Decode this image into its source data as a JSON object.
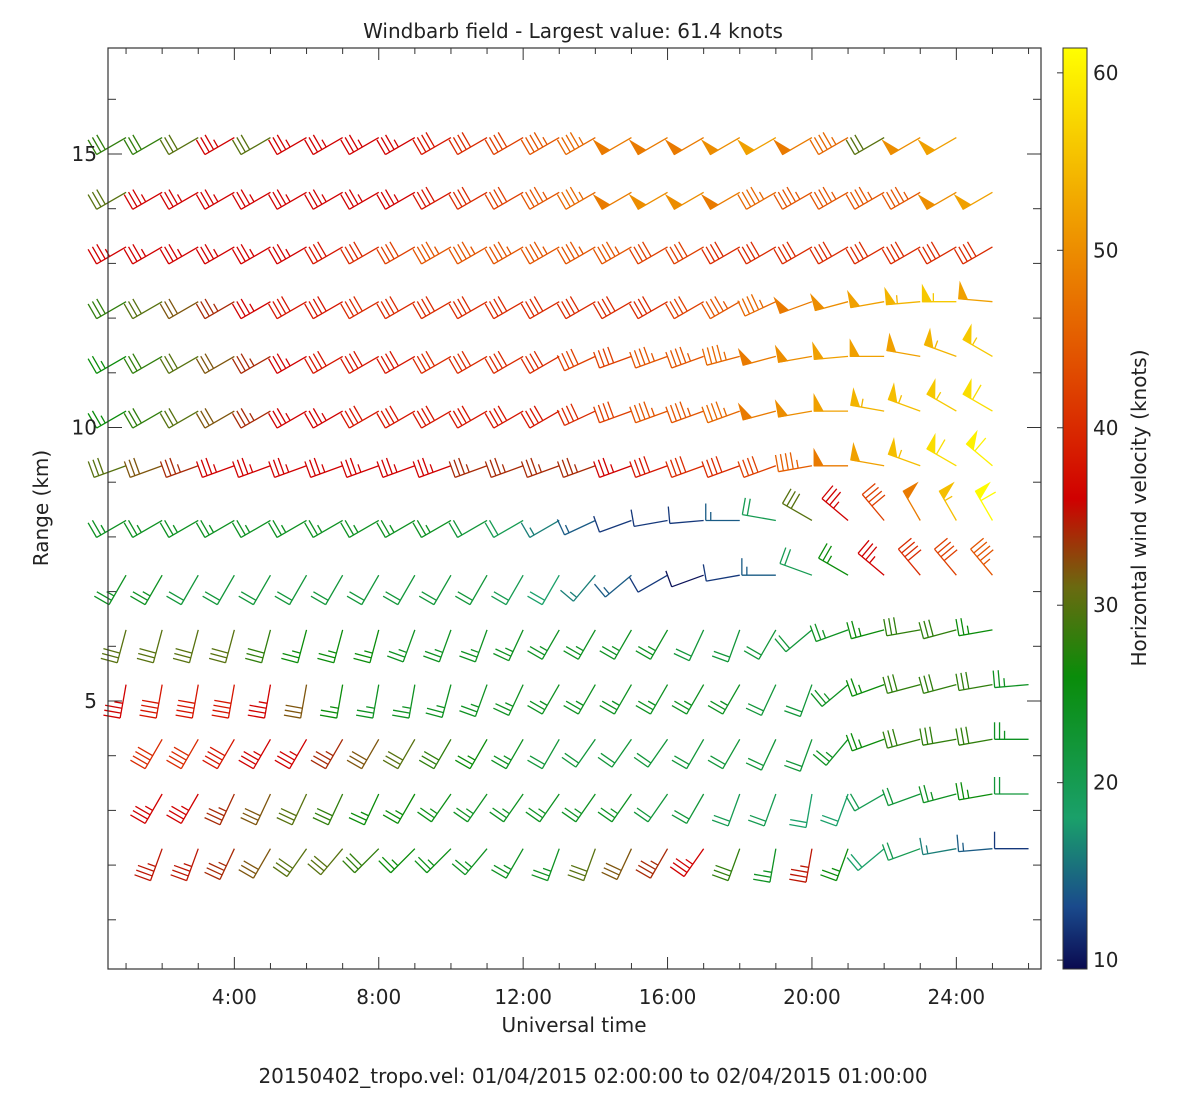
{
  "chart_data": {
    "type": "windbarb",
    "title": "Windbarb field - Largest value: 61.4 knots",
    "xlabel": "Universal time",
    "ylabel": "Range (km)",
    "footer": "20150402_tropo.vel:  01/04/2015 02:00:00 to 02/04/2015 01:00:00",
    "x_ticks": [
      {
        "value": 4,
        "label": "4:00"
      },
      {
        "value": 8,
        "label": "8:00"
      },
      {
        "value": 12,
        "label": "12:00"
      },
      {
        "value": 16,
        "label": "16:00"
      },
      {
        "value": 20,
        "label": "20:00"
      },
      {
        "value": 24,
        "label": "24:00"
      }
    ],
    "y_ticks": [
      {
        "value": 5,
        "label": "5"
      },
      {
        "value": 10,
        "label": "10"
      },
      {
        "value": 15,
        "label": "15"
      }
    ],
    "xlim": [
      0.5,
      26.5
    ],
    "ylim": [
      0.5,
      17.0
    ],
    "time_step_hours": 1.0,
    "colorbar": {
      "label": "Horizontal wind velocity (knots)",
      "range": [
        9.5,
        61.4
      ],
      "ticks": [
        {
          "value": 10,
          "label": "10"
        },
        {
          "value": 20,
          "label": "20"
        },
        {
          "value": 30,
          "label": "30"
        },
        {
          "value": 40,
          "label": "40"
        },
        {
          "value": 50,
          "label": "50"
        },
        {
          "value": 60,
          "label": "60"
        }
      ],
      "stops": [
        {
          "value": 9.5,
          "color": "#0a0a50"
        },
        {
          "value": 13,
          "color": "#1a4a8c"
        },
        {
          "value": 18,
          "color": "#1aa06a"
        },
        {
          "value": 26,
          "color": "#0a8c0a"
        },
        {
          "value": 31,
          "color": "#6a6a10"
        },
        {
          "value": 36,
          "color": "#d00000"
        },
        {
          "value": 43,
          "color": "#e04a00"
        },
        {
          "value": 52,
          "color": "#f0a000"
        },
        {
          "value": 61.4,
          "color": "#ffff00"
        }
      ]
    },
    "layers": [
      {
        "range_km": 2.3,
        "start": 2,
        "end": 26,
        "dir": [
          200,
          200,
          205,
          210,
          215,
          220,
          225,
          225,
          225,
          220,
          210,
          200,
          200,
          205,
          210,
          215,
          200,
          190,
          190,
          200,
          230,
          250,
          260,
          265,
          270
        ],
        "speed": [
          35,
          35,
          34,
          32,
          30,
          30,
          28,
          26,
          25,
          24,
          24,
          24,
          30,
          32,
          34,
          36,
          28,
          24,
          35,
          26,
          18,
          20,
          16,
          14,
          12
        ]
      },
      {
        "range_km": 3.3,
        "start": 2,
        "end": 26,
        "dir": [
          210,
          210,
          205,
          205,
          205,
          205,
          205,
          210,
          215,
          215,
          215,
          215,
          215,
          215,
          215,
          210,
          200,
          200,
          190,
          200,
          240,
          250,
          255,
          260,
          270
        ],
        "speed": [
          36,
          36,
          34,
          32,
          30,
          28,
          26,
          26,
          25,
          24,
          24,
          24,
          24,
          24,
          22,
          22,
          20,
          20,
          18,
          18,
          20,
          22,
          24,
          26,
          22
        ]
      },
      {
        "range_km": 4.3,
        "start": 2,
        "end": 26,
        "dir": [
          210,
          210,
          210,
          210,
          210,
          210,
          210,
          210,
          210,
          210,
          210,
          210,
          215,
          215,
          215,
          210,
          210,
          205,
          200,
          220,
          250,
          255,
          260,
          260,
          270
        ],
        "speed": [
          40,
          40,
          38,
          36,
          36,
          34,
          32,
          30,
          28,
          26,
          24,
          22,
          22,
          22,
          22,
          22,
          22,
          22,
          22,
          24,
          26,
          28,
          28,
          28,
          24
        ]
      },
      {
        "range_km": 5.3,
        "start": 1,
        "end": 26,
        "dir": [
          190,
          190,
          190,
          190,
          190,
          190,
          190,
          190,
          190,
          195,
          200,
          205,
          210,
          210,
          210,
          210,
          210,
          210,
          205,
          200,
          230,
          250,
          255,
          255,
          260,
          265
        ],
        "speed": [
          36,
          38,
          38,
          38,
          36,
          32,
          26,
          24,
          24,
          24,
          24,
          24,
          24,
          24,
          24,
          24,
          24,
          24,
          22,
          22,
          24,
          26,
          28,
          28,
          28,
          24
        ]
      },
      {
        "range_km": 6.3,
        "start": 0,
        "end": 25,
        "dir": [
          190,
          195,
          195,
          195,
          195,
          195,
          195,
          195,
          195,
          200,
          200,
          200,
          205,
          210,
          210,
          210,
          210,
          205,
          200,
          210,
          230,
          250,
          255,
          260,
          255,
          260
        ],
        "speed": [
          30,
          30,
          30,
          30,
          30,
          28,
          26,
          26,
          26,
          24,
          24,
          24,
          24,
          24,
          24,
          24,
          24,
          22,
          22,
          22,
          22,
          24,
          26,
          28,
          28,
          26
        ]
      },
      {
        "range_km": 7.3,
        "start": 0,
        "end": 25,
        "dir": [
          210,
          210,
          210,
          210,
          210,
          210,
          210,
          210,
          210,
          210,
          210,
          210,
          210,
          210,
          220,
          230,
          240,
          250,
          260,
          270,
          290,
          300,
          310,
          320,
          320,
          320
        ],
        "speed": [
          24,
          24,
          24,
          22,
          22,
          22,
          22,
          22,
          22,
          22,
          22,
          22,
          20,
          18,
          16,
          14,
          12,
          10,
          12,
          14,
          20,
          26,
          36,
          40,
          42,
          44
        ]
      },
      {
        "range_km": 8.3,
        "start": 0,
        "end": 25,
        "dir": [
          240,
          240,
          240,
          240,
          240,
          240,
          240,
          240,
          240,
          240,
          240,
          240,
          240,
          240,
          245,
          250,
          260,
          265,
          270,
          280,
          300,
          310,
          320,
          330,
          330,
          330
        ],
        "speed": [
          24,
          24,
          24,
          24,
          24,
          24,
          24,
          24,
          24,
          24,
          24,
          22,
          20,
          16,
          14,
          12,
          12,
          12,
          14,
          20,
          30,
          36,
          42,
          48,
          55,
          61
        ]
      },
      {
        "range_km": 9.3,
        "start": 0,
        "end": 25,
        "dir": [
          250,
          250,
          250,
          250,
          250,
          250,
          250,
          250,
          250,
          250,
          250,
          250,
          250,
          250,
          250,
          250,
          250,
          250,
          250,
          250,
          260,
          270,
          280,
          290,
          300,
          310
        ],
        "speed": [
          28,
          30,
          32,
          34,
          36,
          36,
          36,
          36,
          36,
          36,
          36,
          34,
          34,
          34,
          34,
          36,
          38,
          40,
          40,
          42,
          45,
          48,
          52,
          55,
          58,
          60
        ]
      },
      {
        "range_km": 10.3,
        "start": 0,
        "end": 25,
        "dir": [
          240,
          240,
          240,
          240,
          240,
          240,
          240,
          240,
          240,
          240,
          240,
          240,
          240,
          240,
          245,
          250,
          250,
          250,
          250,
          255,
          260,
          270,
          280,
          290,
          300,
          300
        ],
        "speed": [
          26,
          26,
          28,
          30,
          32,
          34,
          36,
          36,
          38,
          38,
          38,
          38,
          38,
          38,
          40,
          42,
          44,
          44,
          46,
          48,
          50,
          52,
          54,
          55,
          56,
          58
        ]
      },
      {
        "range_km": 11.3,
        "start": 0,
        "end": 25,
        "dir": [
          240,
          240,
          240,
          240,
          240,
          240,
          240,
          240,
          240,
          240,
          240,
          240,
          240,
          240,
          245,
          250,
          250,
          250,
          255,
          255,
          260,
          265,
          270,
          280,
          290,
          300
        ],
        "speed": [
          26,
          26,
          28,
          30,
          32,
          34,
          36,
          38,
          38,
          38,
          40,
          40,
          40,
          40,
          42,
          42,
          44,
          44,
          46,
          48,
          50,
          52,
          52,
          52,
          54,
          56
        ]
      },
      {
        "range_km": 12.3,
        "start": 0,
        "end": 25,
        "dir": [
          240,
          240,
          240,
          240,
          240,
          240,
          240,
          240,
          240,
          240,
          240,
          240,
          240,
          240,
          240,
          240,
          240,
          240,
          240,
          245,
          250,
          255,
          260,
          265,
          270,
          275
        ],
        "speed": [
          26,
          28,
          30,
          32,
          34,
          36,
          38,
          38,
          40,
          40,
          40,
          40,
          40,
          40,
          40,
          40,
          40,
          42,
          44,
          46,
          48,
          50,
          52,
          54,
          56,
          52
        ]
      },
      {
        "range_km": 13.3,
        "start": 0,
        "end": 25,
        "dir": [
          240,
          240,
          240,
          240,
          240,
          240,
          240,
          240,
          240,
          240,
          240,
          240,
          240,
          240,
          240,
          240,
          240,
          240,
          240,
          240,
          240,
          240,
          240,
          240,
          240,
          240
        ],
        "speed": [
          36,
          36,
          36,
          36,
          36,
          36,
          36,
          38,
          40,
          42,
          44,
          44,
          44,
          44,
          44,
          44,
          42,
          42,
          40,
          40,
          40,
          40,
          40,
          40,
          40,
          40
        ]
      },
      {
        "range_km": 14.3,
        "start": 0,
        "end": 25,
        "dir": [
          240,
          240,
          240,
          240,
          240,
          240,
          240,
          240,
          240,
          240,
          240,
          240,
          240,
          240,
          240,
          240,
          240,
          240,
          240,
          240,
          240,
          240,
          240,
          240,
          240,
          240
        ],
        "speed": [
          36,
          30,
          36,
          36,
          36,
          36,
          36,
          36,
          36,
          36,
          38,
          40,
          42,
          44,
          46,
          48,
          50,
          50,
          48,
          46,
          44,
          44,
          44,
          44,
          50,
          52
        ]
      },
      {
        "range_km": 15.3,
        "start": 0,
        "end": 24,
        "dir": [
          240,
          240,
          240,
          240,
          240,
          240,
          240,
          240,
          240,
          240,
          240,
          240,
          240,
          240,
          240,
          240,
          240,
          240,
          240,
          240,
          240,
          240,
          240,
          240,
          240
        ],
        "speed": [
          28,
          28,
          28,
          30,
          36,
          30,
          36,
          36,
          36,
          36,
          38,
          40,
          42,
          44,
          46,
          48,
          48,
          48,
          50,
          52,
          48,
          46,
          30,
          50,
          52
        ]
      }
    ]
  }
}
